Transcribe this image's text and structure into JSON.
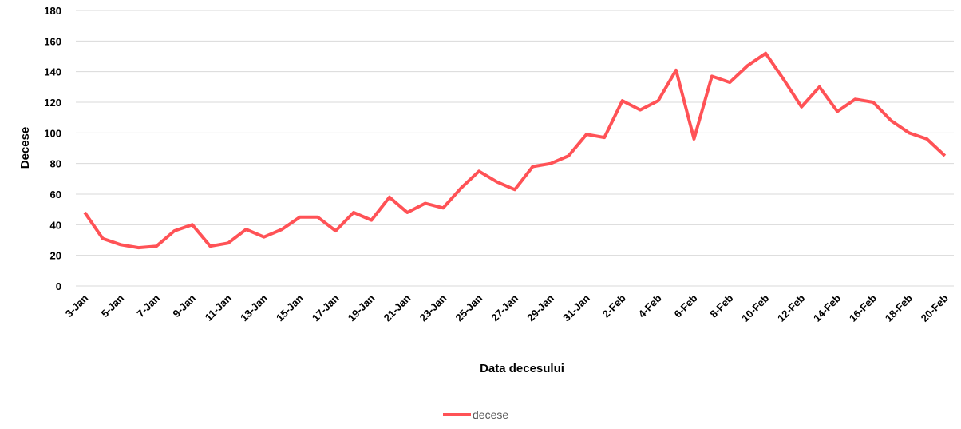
{
  "chart_data": {
    "type": "line",
    "x_label": "Data decesului",
    "y_label": "Decese",
    "categories": [
      "3-Jan",
      null,
      "5-Jan",
      null,
      "7-Jan",
      null,
      "9-Jan",
      null,
      "11-Jan",
      null,
      "13-Jan",
      null,
      "15-Jan",
      null,
      "17-Jan",
      null,
      "19-Jan",
      null,
      "21-Jan",
      null,
      "23-Jan",
      null,
      "25-Jan",
      null,
      "27-Jan",
      null,
      "29-Jan",
      null,
      "31-Jan",
      null,
      "2-Feb",
      null,
      "4-Feb",
      null,
      "6-Feb",
      null,
      "8-Feb",
      null,
      "10-Feb",
      null,
      "12-Feb",
      null,
      "14-Feb",
      null,
      "16-Feb",
      null,
      "18-Feb",
      null,
      "20-Feb"
    ],
    "series": [
      {
        "name": "decese",
        "color": "#ff5256",
        "values": [
          48,
          31,
          27,
          25,
          26,
          36,
          40,
          26,
          28,
          37,
          32,
          37,
          45,
          45,
          36,
          48,
          43,
          58,
          48,
          54,
          51,
          64,
          75,
          68,
          63,
          78,
          80,
          85,
          99,
          97,
          121,
          115,
          121,
          141,
          96,
          137,
          133,
          144,
          152,
          135,
          117,
          130,
          114,
          122,
          120,
          108,
          100,
          96,
          85
        ]
      }
    ],
    "ylim": [
      0,
      180
    ],
    "yticks": [
      0,
      20,
      40,
      60,
      80,
      100,
      120,
      140,
      160,
      180
    ],
    "grid": true,
    "legend": "bottom"
  }
}
